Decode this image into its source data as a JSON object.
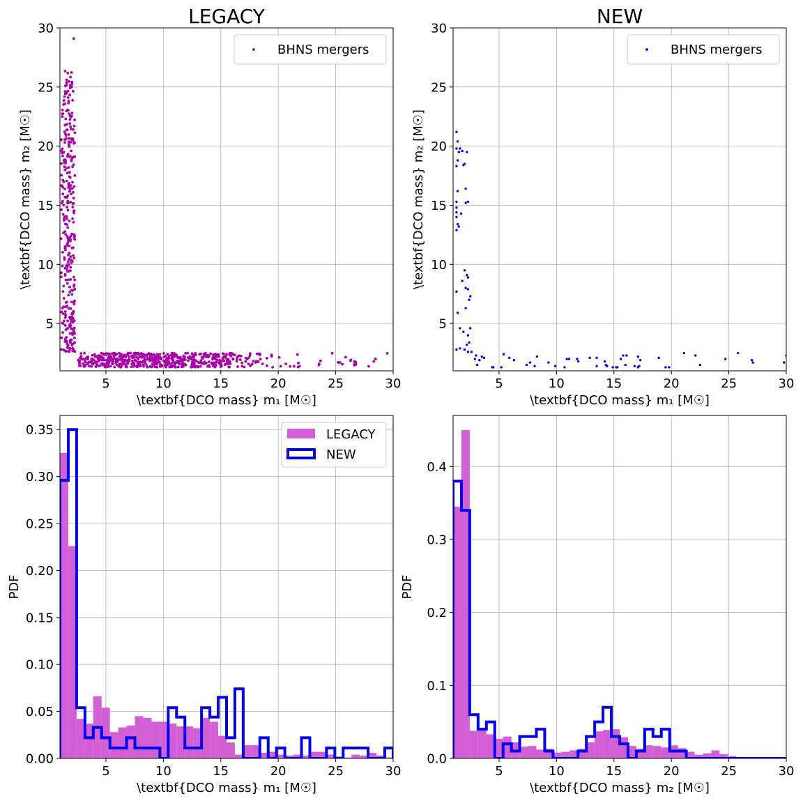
{
  "chart_data": [
    {
      "type": "scatter",
      "title": "LEGACY",
      "xlabel": "\\textbf{DCO mass} m₁ [M☉]",
      "ylabel": "\\textbf{DCO mass} m₂ [M☉]",
      "xlim": [
        1,
        30
      ],
      "ylim": [
        1,
        30
      ],
      "xticks": [
        5,
        10,
        15,
        20,
        25,
        30
      ],
      "yticks": [
        5,
        10,
        15,
        20,
        25,
        30
      ],
      "grid": true,
      "legend_position": "top-right",
      "series": [
        {
          "name": "BHNS mergers",
          "color": "#aa00aa",
          "description_clusters": [
            {
              "x_range": [
                1.1,
                2.3
              ],
              "y_range": [
                2.6,
                26.5
              ]
            },
            {
              "x_range": [
                2.6,
                16.0
              ],
              "y_range": [
                1.3,
                2.5
              ]
            },
            {
              "x_range": [
                16.0,
                30.0
              ],
              "y_range": [
                1.3,
                2.5
              ]
            }
          ],
          "notable_points": [
            {
              "x": 2.2,
              "y": 29.1
            }
          ]
        }
      ]
    },
    {
      "type": "scatter",
      "title": "NEW",
      "xlabel": "\\textbf{DCO mass} m₁ [M☉]",
      "ylabel": "\\textbf{DCO mass} m₂ [M☉]",
      "xlim": [
        1,
        30
      ],
      "ylim": [
        1,
        30
      ],
      "xticks": [
        5,
        10,
        15,
        20,
        25,
        30
      ],
      "yticks": [
        5,
        10,
        15,
        20,
        25,
        30
      ],
      "grid": true,
      "legend_position": "top-right",
      "series": [
        {
          "name": "BHNS mergers",
          "color": "#0000ee",
          "points": [
            [
              1.3,
              21.2
            ],
            [
              1.4,
              20.4
            ],
            [
              1.3,
              19.8
            ],
            [
              1.5,
              19.5
            ],
            [
              1.4,
              18.8
            ],
            [
              1.3,
              18.3
            ],
            [
              1.4,
              16.2
            ],
            [
              1.3,
              15.3
            ],
            [
              1.3,
              14.8
            ],
            [
              1.3,
              14.4
            ],
            [
              1.3,
              14.0
            ],
            [
              1.4,
              13.4
            ],
            [
              1.3,
              12.9
            ],
            [
              1.5,
              13.2
            ],
            [
              1.7,
              14.3
            ],
            [
              1.6,
              19.8
            ],
            [
              1.8,
              19.6
            ],
            [
              1.9,
              18.4
            ],
            [
              2.0,
              18.5
            ],
            [
              2.2,
              19.5
            ],
            [
              2.1,
              16.4
            ],
            [
              2.3,
              15.3
            ],
            [
              2.1,
              15.2
            ],
            [
              1.3,
              7.7
            ],
            [
              1.4,
              5.9
            ],
            [
              1.6,
              4.6
            ],
            [
              2.0,
              9.5
            ],
            [
              2.2,
              9.1
            ],
            [
              2.3,
              8.9
            ],
            [
              1.8,
              8.6
            ],
            [
              2.1,
              8.0
            ],
            [
              2.3,
              7.9
            ],
            [
              2.5,
              7.3
            ],
            [
              2.4,
              7.0
            ],
            [
              2.1,
              6.3
            ],
            [
              1.9,
              4.3
            ],
            [
              2.3,
              4.0
            ],
            [
              2.5,
              4.6
            ],
            [
              2.2,
              3.2
            ],
            [
              2.4,
              3.4
            ],
            [
              1.3,
              2.8
            ],
            [
              1.6,
              2.9
            ],
            [
              2.0,
              2.8
            ],
            [
              2.3,
              2.6
            ],
            [
              2.6,
              2.6
            ],
            [
              2.9,
              2.0
            ],
            [
              3.3,
              1.9
            ],
            [
              3.5,
              2.2
            ],
            [
              3.0,
              2.3
            ],
            [
              3.7,
              2.1
            ],
            [
              3.1,
              1.5
            ],
            [
              4.4,
              1.3
            ],
            [
              4.5,
              1.3
            ],
            [
              5.2,
              1.3
            ],
            [
              5.4,
              2.4
            ],
            [
              5.9,
              2.1
            ],
            [
              6.3,
              1.9
            ],
            [
              7.4,
              1.5
            ],
            [
              7.7,
              1.7
            ],
            [
              8.1,
              1.4
            ],
            [
              8.3,
              2.2
            ],
            [
              9.3,
              1.7
            ],
            [
              9.9,
              1.4
            ],
            [
              10.7,
              1.3
            ],
            [
              10.9,
              2.0
            ],
            [
              11.1,
              2.0
            ],
            [
              11.8,
              2.0
            ],
            [
              11.9,
              1.8
            ],
            [
              12.9,
              2.1
            ],
            [
              13.5,
              2.1
            ],
            [
              13.5,
              1.4
            ],
            [
              14.3,
              1.5
            ],
            [
              14.2,
              1.8
            ],
            [
              14.4,
              1.4
            ],
            [
              14.9,
              1.3
            ],
            [
              15.2,
              1.3
            ],
            [
              15.3,
              1.3
            ],
            [
              15.6,
              2.0
            ],
            [
              15.8,
              2.3
            ],
            [
              16.1,
              2.3
            ],
            [
              16.0,
              1.5
            ],
            [
              16.8,
              1.4
            ],
            [
              17.1,
              1.3
            ],
            [
              17.2,
              1.4
            ],
            [
              17.3,
              1.9
            ],
            [
              17.1,
              2.2
            ],
            [
              18.9,
              2.1
            ],
            [
              19.5,
              1.3
            ],
            [
              19.8,
              1.3
            ],
            [
              21.1,
              2.5
            ],
            [
              22.1,
              2.3
            ],
            [
              22.5,
              1.5
            ],
            [
              24.7,
              2.0
            ],
            [
              25.8,
              2.5
            ],
            [
              27.0,
              1.9
            ],
            [
              27.1,
              1.7
            ],
            [
              29.8,
              1.7
            ],
            [
              30.0,
              2.3
            ]
          ]
        }
      ]
    },
    {
      "type": "histogram",
      "title": "",
      "xlabel": "\\textbf{DCO mass} m₁ [M☉]",
      "ylabel": "PDF",
      "xlim": [
        1,
        30
      ],
      "ylim": [
        0,
        0.365
      ],
      "xticks": [
        5,
        10,
        15,
        20,
        25,
        30
      ],
      "yticks": [
        0.0,
        0.05,
        0.1,
        0.15,
        0.2,
        0.25,
        0.3,
        0.35
      ],
      "ytick_labels": [
        "0.00",
        "0.05",
        "0.10",
        "0.15",
        "0.20",
        "0.25",
        "0.30",
        "0.35"
      ],
      "grid": true,
      "legend_position": "top-right",
      "bin_edges": [
        1.0,
        1.725,
        2.45,
        3.175,
        3.9,
        4.625,
        5.35,
        6.075,
        6.8,
        7.525,
        8.25,
        8.975,
        9.7,
        10.425,
        11.15,
        11.875,
        12.6,
        13.325,
        14.05,
        14.775,
        15.5,
        16.225,
        16.95,
        17.675,
        18.4,
        19.125,
        19.85,
        20.575,
        21.3,
        22.025,
        22.75,
        23.475,
        24.2,
        24.925,
        25.65,
        26.375,
        27.1,
        27.825,
        28.55,
        29.275,
        30.0
      ],
      "series": [
        {
          "name": "LEGACY",
          "style": "filled",
          "color": "#d35fd6",
          "values": [
            0.325,
            0.226,
            0.042,
            0.037,
            0.066,
            0.054,
            0.028,
            0.033,
            0.035,
            0.045,
            0.043,
            0.039,
            0.039,
            0.037,
            0.034,
            0.034,
            0.032,
            0.043,
            0.039,
            0.024,
            0.017,
            0.004,
            0.014,
            0.014,
            0.006,
            0.007,
            0.004,
            0.003,
            0.004,
            0.003,
            0.007,
            0.007,
            0.004,
            0.002,
            0.001,
            0.004,
            0.003,
            0.006,
            0.003,
            0.001
          ]
        },
        {
          "name": "NEW",
          "style": "step",
          "color": "#0000ee",
          "values": [
            0.296,
            0.35,
            0.054,
            0.022,
            0.033,
            0.022,
            0.011,
            0.011,
            0.022,
            0.011,
            0.011,
            0.011,
            0.0,
            0.054,
            0.044,
            0.011,
            0.011,
            0.054,
            0.044,
            0.065,
            0.022,
            0.074,
            0.0,
            0.0,
            0.022,
            0.0,
            0.011,
            0.0,
            0.0,
            0.022,
            0.0,
            0.0,
            0.011,
            0.0,
            0.011,
            0.011,
            0.011,
            0.0,
            0.0,
            0.011
          ]
        }
      ]
    },
    {
      "type": "histogram",
      "title": "",
      "xlabel": "\\textbf{DCO mass} m₂ [M☉]",
      "ylabel": "PDF",
      "xlim": [
        1,
        30
      ],
      "ylim": [
        0,
        0.47
      ],
      "xticks": [
        5,
        10,
        15,
        20,
        25,
        30
      ],
      "yticks": [
        0.0,
        0.1,
        0.2,
        0.3,
        0.4
      ],
      "ytick_labels": [
        "0.0",
        "0.1",
        "0.2",
        "0.3",
        "0.4"
      ],
      "grid": true,
      "legend_position": "",
      "bin_edges": [
        1.0,
        1.725,
        2.45,
        3.175,
        3.9,
        4.625,
        5.35,
        6.075,
        6.8,
        7.525,
        8.25,
        8.975,
        9.7,
        10.425,
        11.15,
        11.875,
        12.6,
        13.325,
        14.05,
        14.775,
        15.5,
        16.225,
        16.95,
        17.675,
        18.4,
        19.125,
        19.85,
        20.575,
        21.3,
        22.025,
        22.75,
        23.475,
        24.2,
        24.925,
        25.65,
        26.375,
        27.1,
        27.825,
        28.55,
        29.275,
        30.0
      ],
      "series": [
        {
          "name": "LEGACY",
          "style": "filled",
          "color": "#d35fd6",
          "values": [
            0.345,
            0.45,
            0.038,
            0.04,
            0.033,
            0.027,
            0.03,
            0.022,
            0.016,
            0.017,
            0.012,
            0.013,
            0.008,
            0.009,
            0.011,
            0.013,
            0.022,
            0.037,
            0.039,
            0.04,
            0.029,
            0.017,
            0.013,
            0.018,
            0.017,
            0.015,
            0.018,
            0.014,
            0.009,
            0.005,
            0.007,
            0.011,
            0.006,
            0.003,
            0.002,
            0.001,
            0.001,
            0.001,
            0.0,
            0.0
          ]
        },
        {
          "name": "NEW",
          "style": "step",
          "color": "#0000ee",
          "values": [
            0.38,
            0.34,
            0.06,
            0.04,
            0.05,
            0.0,
            0.02,
            0.01,
            0.03,
            0.03,
            0.04,
            0.01,
            0.0,
            0.0,
            0.0,
            0.01,
            0.03,
            0.05,
            0.07,
            0.03,
            0.02,
            0.0,
            0.01,
            0.04,
            0.03,
            0.04,
            0.01,
            0.01,
            0.0,
            0.0,
            0.0,
            0.0,
            0.0,
            0.0,
            0.0,
            0.0,
            0.0,
            0.0,
            0.0,
            0.0
          ]
        }
      ]
    }
  ],
  "colors": {
    "legacy_scatter": "#aa00aa",
    "new_scatter": "#0000ee",
    "legacy_hist": "#d35fd6",
    "new_hist": "#0000ee",
    "grid": "#b0b0b0"
  }
}
